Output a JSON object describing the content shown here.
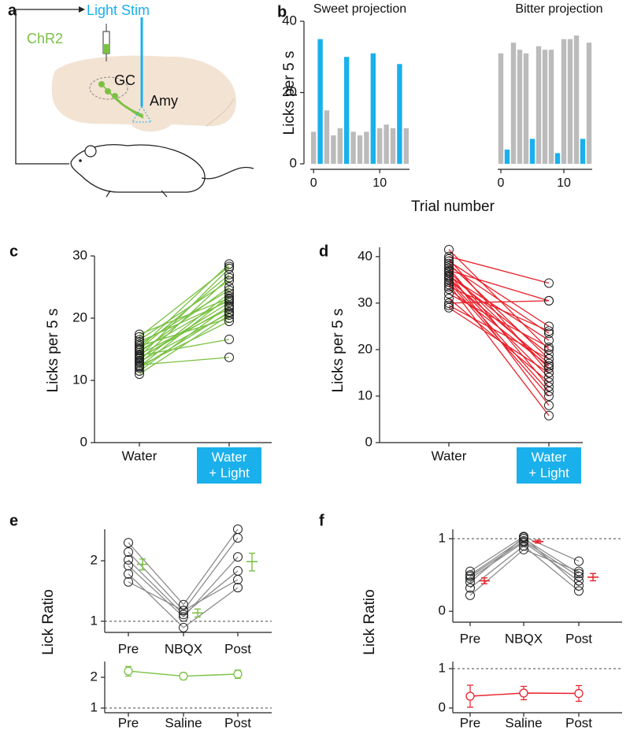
{
  "panel_a": {
    "label": "a",
    "light_stim": "Light Stim",
    "chr2": "ChR2",
    "gc": "GC",
    "amy": "Amy"
  },
  "chart_data": [
    {
      "type": "bar",
      "panel": "b",
      "title": "Sweet projection",
      "ylabel": "Licks per 5 s",
      "xlabel": "Trial number",
      "x": [
        0,
        1,
        2,
        3,
        4,
        5,
        6,
        7,
        8,
        9,
        10,
        11,
        12,
        13,
        14
      ],
      "values": [
        9,
        35,
        15,
        8,
        10,
        30,
        9,
        8,
        9,
        31,
        10,
        11,
        10,
        28,
        10
      ],
      "colors": [
        "#bbbbbb",
        "#1ab0ec",
        "#bbbbbb",
        "#bbbbbb",
        "#bbbbbb",
        "#1ab0ec",
        "#bbbbbb",
        "#bbbbbb",
        "#bbbbbb",
        "#1ab0ec",
        "#bbbbbb",
        "#bbbbbb",
        "#bbbbbb",
        "#1ab0ec",
        "#bbbbbb"
      ],
      "xlim": [
        -0.5,
        14.5
      ],
      "xticks": [
        0,
        10
      ],
      "ylim": [
        0,
        40
      ],
      "yticks": [
        0,
        20,
        40
      ]
    },
    {
      "type": "bar",
      "title": "Bitter projection",
      "x": [
        0,
        1,
        2,
        3,
        4,
        5,
        6,
        7,
        8,
        9,
        10,
        11,
        12,
        13,
        14
      ],
      "values": [
        31,
        4,
        34,
        32,
        31,
        7,
        33,
        32,
        32,
        3,
        35,
        35,
        36,
        7,
        34
      ],
      "colors": [
        "#bbbbbb",
        "#1ab0ec",
        "#bbbbbb",
        "#bbbbbb",
        "#bbbbbb",
        "#1ab0ec",
        "#bbbbbb",
        "#bbbbbb",
        "#bbbbbb",
        "#1ab0ec",
        "#bbbbbb",
        "#bbbbbb",
        "#bbbbbb",
        "#1ab0ec",
        "#bbbbbb"
      ],
      "xlim": [
        -0.5,
        14.5
      ],
      "xticks": [
        0,
        10
      ],
      "ylim": [
        0,
        40
      ]
    },
    {
      "type": "paired",
      "panel": "c",
      "ylabel": "Licks per 5 s",
      "categories": [
        "Water",
        "Water + Light"
      ],
      "category_colors": [
        null,
        "#1ab0ec"
      ],
      "color": "#7ac143",
      "ylim": [
        0,
        30
      ],
      "yticks": [
        0,
        10,
        20,
        30
      ],
      "series": [
        {
          "values": [
            11.0,
            20.5
          ]
        },
        {
          "values": [
            11.5,
            22.0
          ]
        },
        {
          "values": [
            12.0,
            21.0
          ]
        },
        {
          "values": [
            12.2,
            23.5
          ]
        },
        {
          "values": [
            12.5,
            13.7
          ]
        },
        {
          "values": [
            12.8,
            24.0
          ]
        },
        {
          "values": [
            13.0,
            20.8
          ]
        },
        {
          "values": [
            13.2,
            26.5
          ]
        },
        {
          "values": [
            13.5,
            22.5
          ]
        },
        {
          "values": [
            13.8,
            28.0
          ]
        },
        {
          "values": [
            14.0,
            16.6
          ]
        },
        {
          "values": [
            14.2,
            21.5
          ]
        },
        {
          "values": [
            14.5,
            25.0
          ]
        },
        {
          "values": [
            14.8,
            23.0
          ]
        },
        {
          "values": [
            15.0,
            27.0
          ]
        },
        {
          "values": [
            15.2,
            28.7
          ]
        },
        {
          "values": [
            15.5,
            20.0
          ]
        },
        {
          "values": [
            15.8,
            24.5
          ]
        },
        {
          "values": [
            16.2,
            22.8
          ]
        },
        {
          "values": [
            16.5,
            26.0
          ]
        },
        {
          "values": [
            17.0,
            28.3
          ]
        },
        {
          "values": [
            17.4,
            23.2
          ]
        },
        {
          "values": [
            12.3,
            19.5
          ]
        },
        {
          "values": [
            13.6,
            21.8
          ]
        }
      ]
    },
    {
      "type": "paired",
      "panel": "d",
      "ylabel": "Licks per 5 s",
      "categories": [
        "Water",
        "Water + Light"
      ],
      "category_colors": [
        null,
        "#1ab0ec"
      ],
      "color": "#e8202a",
      "ylim": [
        0,
        42
      ],
      "yticks": [
        0,
        10,
        20,
        30,
        40
      ],
      "series": [
        {
          "values": [
            41.5,
            20
          ]
        },
        {
          "values": [
            40,
            34.3
          ]
        },
        {
          "values": [
            39.5,
            15
          ]
        },
        {
          "values": [
            39,
            25
          ]
        },
        {
          "values": [
            38.5,
            18
          ]
        },
        {
          "values": [
            38,
            23.5
          ]
        },
        {
          "values": [
            37.5,
            12
          ]
        },
        {
          "values": [
            37,
            30.5
          ]
        },
        {
          "values": [
            36.8,
            16
          ]
        },
        {
          "values": [
            36.5,
            8
          ]
        },
        {
          "values": [
            36,
            19
          ]
        },
        {
          "values": [
            35.8,
            22
          ]
        },
        {
          "values": [
            35.5,
            14
          ]
        },
        {
          "values": [
            35,
            11
          ]
        },
        {
          "values": [
            35,
            17
          ]
        },
        {
          "values": [
            34.5,
            10
          ]
        },
        {
          "values": [
            34,
            5.8
          ]
        },
        {
          "values": [
            33.5,
            24
          ]
        },
        {
          "values": [
            33,
            16.5
          ]
        },
        {
          "values": [
            32,
            20.5
          ]
        },
        {
          "values": [
            31,
            13
          ]
        },
        {
          "values": [
            30,
            30.5
          ]
        },
        {
          "values": [
            29.5,
            18
          ]
        },
        {
          "values": [
            29,
            15
          ]
        }
      ]
    },
    {
      "type": "paired",
      "panel": "e",
      "ylabel": "Lick Ratio",
      "categories": [
        "Pre",
        "NBQX",
        "Post"
      ],
      "log_scale": true,
      "ylim": [
        0.88,
        2.87
      ],
      "yticks": [
        1,
        2
      ],
      "ref_line": 1,
      "color": "#8c8c8c",
      "series": [
        {
          "values": [
            2.46,
            1.21,
            2.87
          ]
        },
        {
          "values": [
            2.21,
            1.13,
            2.6
          ]
        },
        {
          "values": [
            2.02,
            1.08,
            1.78
          ]
        },
        {
          "values": [
            1.89,
            1.05,
            2.09
          ]
        },
        {
          "values": [
            1.72,
            0.93,
            1.47
          ]
        },
        {
          "values": [
            1.57,
            1.13,
            1.61
          ]
        }
      ],
      "mean": {
        "values": [
          1.92,
          1.1,
          1.98
        ],
        "errors": [
          0.12,
          0.05,
          0.2
        ],
        "color": "#7ac143"
      }
    },
    {
      "type": "line",
      "categories": [
        "Pre",
        "Saline",
        "Post"
      ],
      "log_scale": true,
      "ylim": [
        0.9,
        2.85
      ],
      "yticks": [
        1,
        2
      ],
      "ref_line": 1,
      "values": [
        2.3,
        2.05,
        2.15
      ],
      "errors": [
        0.25,
        0.15,
        0.2
      ],
      "color": "#7ac143"
    },
    {
      "type": "paired",
      "panel": "f",
      "ylabel": "Lick Ratio",
      "categories": [
        "Pre",
        "NBQX",
        "Post"
      ],
      "ylim": [
        -0.15,
        1.13
      ],
      "yticks": [
        0,
        1
      ],
      "ref_line": 1,
      "color": "#8c8c8c",
      "series": [
        {
          "values": [
            0.55,
            1.03,
            0.69
          ]
        },
        {
          "values": [
            0.5,
            1.0,
            0.52
          ]
        },
        {
          "values": [
            0.48,
            0.97,
            0.48
          ]
        },
        {
          "values": [
            0.45,
            0.95,
            0.42
          ]
        },
        {
          "values": [
            0.4,
            1.02,
            0.35
          ]
        },
        {
          "values": [
            0.32,
            0.9,
            0.28
          ]
        },
        {
          "values": [
            0.22,
            0.85,
            0.55
          ]
        }
      ],
      "mean": {
        "values": [
          0.42,
          0.96,
          0.47
        ],
        "errors": [
          0.04,
          0.02,
          0.05
        ],
        "color": "#e8202a"
      }
    },
    {
      "type": "line",
      "categories": [
        "Pre",
        "Saline",
        "Post"
      ],
      "ylim": [
        -0.12,
        1.18
      ],
      "yticks": [
        0,
        1
      ],
      "ref_line": 1,
      "values": [
        0.3,
        0.38,
        0.37
      ],
      "errors": [
        0.28,
        0.17,
        0.2
      ],
      "color": "#e8202a"
    }
  ]
}
